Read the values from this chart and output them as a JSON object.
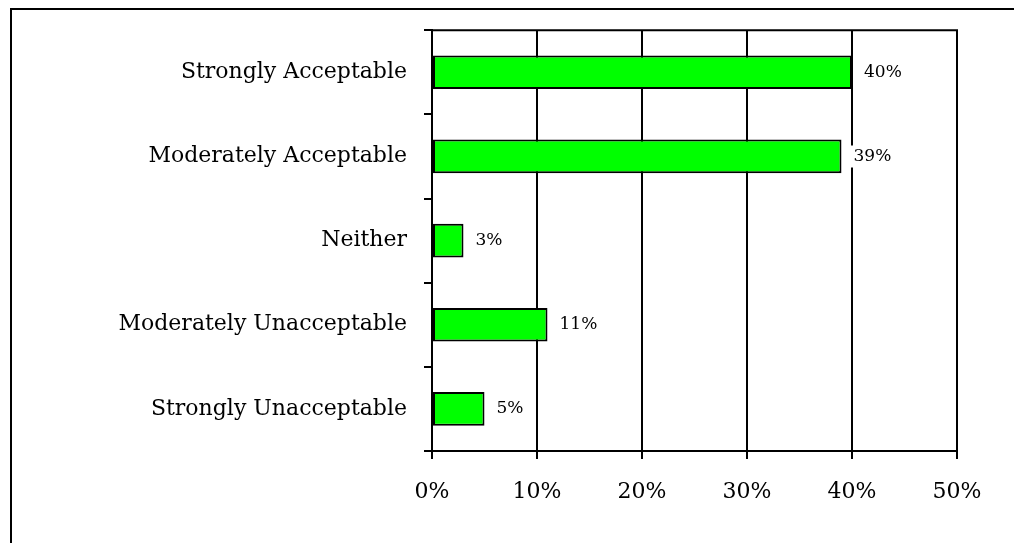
{
  "chart_data": {
    "type": "bar",
    "orientation": "horizontal",
    "categories": [
      "Strongly Acceptable",
      "Moderately Acceptable",
      "Neither",
      "Moderately Unacceptable",
      "Strongly Unacceptable"
    ],
    "values": [
      40,
      39,
      3,
      11,
      5
    ],
    "color": "#00ff00",
    "value_labels": [
      "40%",
      "39%",
      "3%",
      "11%",
      "5%"
    ],
    "xlim": [
      0,
      50
    ],
    "xticks": [
      {
        "value": 0,
        "label": "0%"
      },
      {
        "value": 10,
        "label": "10%"
      },
      {
        "value": 20,
        "label": "20%"
      },
      {
        "value": 30,
        "label": "30%"
      },
      {
        "value": 40,
        "label": "40%"
      },
      {
        "value": 50,
        "label": "50%"
      }
    ],
    "grid": "x"
  }
}
